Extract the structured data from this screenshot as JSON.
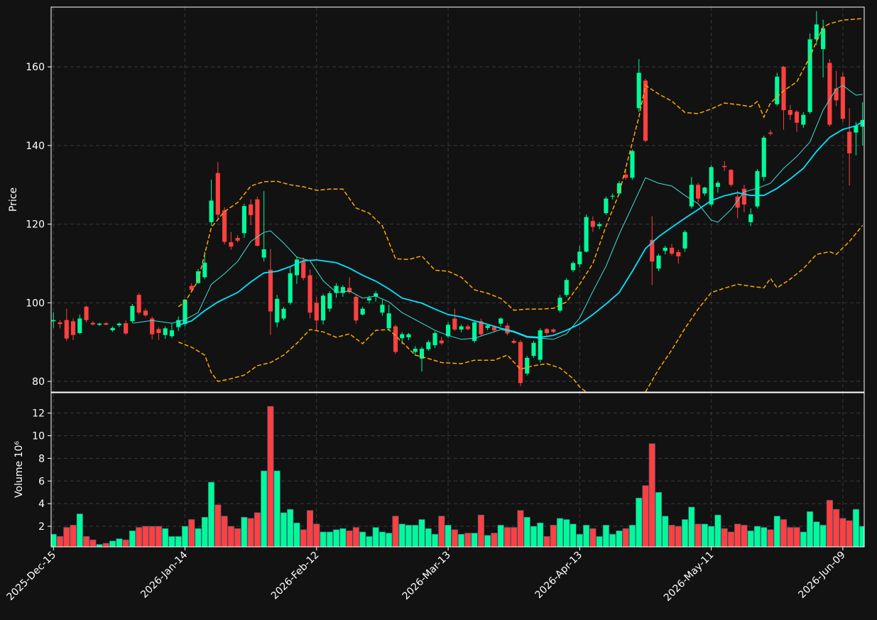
{
  "chart_data": {
    "type": "candlestick",
    "ylabel": "Price",
    "ylim": [
      77.3,
      175.2
    ],
    "yticks": [
      80,
      100,
      120,
      140,
      160
    ],
    "xlim": [
      -0.35,
      123.25
    ],
    "xticks": [
      {
        "value": 0,
        "label": "2025-Dec-15"
      },
      {
        "value": 20,
        "label": "2026-Jan-14"
      },
      {
        "value": 40,
        "label": "2026-Feb-12"
      },
      {
        "value": 60,
        "label": "2026-Mar-13"
      },
      {
        "value": 80,
        "label": "2026-Apr-13"
      },
      {
        "value": 100,
        "label": "2026-May-11"
      },
      {
        "value": 120,
        "label": "2026-Jun-09"
      }
    ],
    "grid": true,
    "up_color": "#00fa9a",
    "down_color": "#ff4040",
    "open": [
      95.3,
      95,
      95.6,
      95.3,
      92.3,
      99,
      94.9,
      94.4,
      94.8,
      93,
      94.3,
      94.8,
      95.3,
      102,
      98,
      96,
      93.3,
      91.8,
      91.5,
      93.8,
      94.6,
      104.3,
      105,
      106.5,
      120.5,
      133,
      123.5,
      115.4,
      116.5,
      117.7,
      125,
      126.3,
      111.5,
      108.4,
      95,
      96,
      100,
      107,
      110.5,
      107,
      100,
      95.5,
      98.5,
      102.5,
      102.5,
      103.8,
      101.5,
      97,
      100.6,
      101.6,
      97.5,
      93.5,
      94,
      91,
      91.2,
      87.5,
      85.8,
      88.2,
      89.2,
      90.4,
      91.5,
      96,
      93.2,
      94,
      90.3,
      95.3,
      93.6,
      93.8,
      94.7,
      94.2,
      90.3,
      90,
      82,
      86.5,
      85.5,
      93.3,
      93.2,
      98,
      102,
      108.3,
      109.8,
      113,
      120.8,
      119.5,
      122.8,
      127,
      127.8,
      132.6,
      131.8,
      149.5,
      156.5,
      116,
      108.7,
      113.2,
      114,
      112.9,
      113.8,
      124.5,
      130,
      127.8,
      125,
      129.5,
      134.8,
      133.8,
      127,
      129,
      120.5,
      124.5,
      132,
      143.3,
      150.5,
      160,
      149,
      148.6,
      145.3,
      148.5,
      167,
      164.5,
      161,
      154.5,
      157.5,
      143.5,
      143.3,
      144.8
    ],
    "high": [
      97.6,
      95.6,
      98.5,
      96,
      97,
      99.3,
      95.3,
      94.9,
      95.1,
      94,
      95,
      95.5,
      99.7,
      102.5,
      98.5,
      96.5,
      93.8,
      94,
      94.8,
      96.5,
      101,
      105,
      108.6,
      113,
      131.3,
      135.8,
      124.3,
      118,
      117.2,
      125.2,
      126.3,
      127,
      128.4,
      113.7,
      102,
      99,
      109,
      111.8,
      111.5,
      108.5,
      101.5,
      102.3,
      103,
      105,
      104.5,
      106.5,
      102,
      99,
      101.8,
      103,
      101,
      99.5,
      94.4,
      92.5,
      92.3,
      89,
      88.8,
      90.5,
      92.8,
      91.3,
      95,
      98.5,
      94.5,
      94.4,
      95.5,
      96,
      94.5,
      94.3,
      96.3,
      94.8,
      90.8,
      90.5,
      86.5,
      90.3,
      93.5,
      93.6,
      93.5,
      102,
      106.3,
      110.5,
      114.5,
      122.5,
      122,
      120.5,
      127,
      127.8,
      131,
      134,
      139,
      162,
      157,
      122,
      112.5,
      114.5,
      115,
      113.5,
      118.5,
      132,
      130.5,
      129.5,
      135,
      131,
      136,
      134,
      128.5,
      130,
      124,
      134,
      142.5,
      144,
      158.5,
      160.3,
      150.3,
      149,
      148.5,
      168.5,
      174.2,
      172,
      162,
      159,
      158.5,
      149.5,
      146,
      151
    ],
    "low": [
      93.6,
      93.5,
      90.3,
      90.5,
      92,
      95,
      94.2,
      94.1,
      94.3,
      92.6,
      93.8,
      91.8,
      95,
      97,
      96.4,
      90.7,
      90.5,
      90.8,
      91,
      92.8,
      94,
      102.9,
      104.9,
      106,
      119.6,
      121.5,
      114.8,
      113.5,
      115.3,
      116.5,
      119.8,
      114.3,
      110.5,
      91.8,
      93.8,
      95.5,
      99.5,
      104.8,
      105.7,
      96,
      92.8,
      94.5,
      97.7,
      101.3,
      101.5,
      102.3,
      94.7,
      96.8,
      99.8,
      100.3,
      96.7,
      92.8,
      87,
      89.5,
      90.5,
      86.5,
      82.5,
      87.8,
      88.5,
      89.3,
      91,
      92.8,
      92.5,
      93,
      89.8,
      91.5,
      93,
      92.5,
      94,
      91.7,
      89.5,
      78.8,
      81.5,
      86,
      84.8,
      91.8,
      92.3,
      97.5,
      101.5,
      107.8,
      109,
      112.8,
      118,
      118.7,
      122.3,
      126.3,
      127.3,
      131.3,
      131.3,
      148.5,
      140.8,
      104.5,
      108,
      112.3,
      112,
      110,
      113,
      124,
      125.5,
      127.2,
      124.5,
      128,
      133.5,
      129.5,
      121.5,
      123,
      119.5,
      124,
      131,
      142.5,
      150,
      144,
      146.5,
      143.5,
      144.5,
      148,
      165.5,
      157.3,
      144.8,
      150,
      146,
      129.8,
      137.5,
      140
    ],
    "close": [
      95.6,
      94.6,
      90.9,
      91.8,
      96,
      95.6,
      94.5,
      94.7,
      94.4,
      93.6,
      94.7,
      92.2,
      99.2,
      97.5,
      96.8,
      92,
      92.3,
      93.5,
      93,
      95.6,
      100.8,
      103.3,
      108,
      110.2,
      126,
      122.4,
      115.5,
      114.3,
      115.8,
      124.6,
      122.3,
      114.5,
      113.6,
      97.8,
      101,
      98.5,
      107.5,
      111,
      106.3,
      97.5,
      95.5,
      101.8,
      102.4,
      104.3,
      104,
      102.7,
      95.5,
      98.5,
      101.2,
      102.4,
      99.5,
      97.3,
      87.5,
      92,
      92,
      88.3,
      88.3,
      90,
      92.3,
      89.7,
      94.4,
      93.2,
      94,
      93.3,
      95,
      92,
      94.2,
      93,
      96,
      92.2,
      89.8,
      79.6,
      86,
      89.8,
      93,
      92.3,
      92.6,
      101.3,
      105.8,
      110.1,
      113,
      121.8,
      119.3,
      120,
      126.5,
      127.2,
      130.4,
      131.8,
      138.6,
      158.5,
      141.2,
      110.5,
      112,
      114,
      112.5,
      111.8,
      118,
      130,
      126.5,
      129.3,
      134.5,
      130.5,
      134.5,
      130,
      124.2,
      125,
      122.5,
      133.5,
      142,
      143,
      157.5,
      149,
      147.8,
      145.8,
      147.8,
      167,
      170.8,
      169.8,
      145.3,
      151.5,
      146.8,
      138,
      145,
      146.5
    ],
    "overlays": [
      {
        "color": "#40e0d0",
        "width": 1,
        "dashed": false,
        "x": [
          12,
          15,
          18,
          20,
          22,
          24,
          26,
          28,
          30,
          32,
          33,
          35,
          37,
          39,
          41,
          43,
          45,
          47,
          49,
          51,
          53,
          56,
          58,
          60,
          62,
          64,
          66,
          68,
          70,
          72,
          74,
          76,
          78,
          80,
          82,
          84,
          86,
          88,
          90,
          92,
          94,
          96,
          98,
          100,
          101,
          103,
          105,
          107,
          109,
          111,
          113,
          115,
          117,
          119,
          120,
          121,
          122,
          123
        ],
        "values": [
          94.8,
          95.5,
          94.8,
          95.7,
          97.5,
          104.7,
          107.4,
          110.5,
          115.6,
          117.9,
          118.3,
          115.2,
          111.6,
          110.7,
          105.6,
          102.6,
          103,
          101.2,
          101.7,
          100.2,
          97.5,
          94.8,
          93,
          91.7,
          90.7,
          91,
          92.1,
          93.2,
          92.5,
          91.2,
          91,
          90.7,
          92.1,
          96.1,
          102.9,
          109.3,
          117.4,
          124.6,
          131.8,
          130.4,
          129.7,
          127.3,
          125.2,
          121,
          120.5,
          123.7,
          128.2,
          129.1,
          130.4,
          134.2,
          137.2,
          140.9,
          149,
          154.4,
          155.3,
          154,
          152.8,
          153
        ]
      },
      {
        "color": "#00e5ff",
        "width": 1.8,
        "dashed": false,
        "x": [
          19,
          21,
          23,
          25,
          28,
          30,
          32,
          34,
          36,
          38,
          40,
          43,
          45,
          47,
          49,
          51,
          53,
          56,
          58,
          60,
          62,
          64,
          66,
          68,
          70,
          72,
          74,
          76,
          78,
          80,
          82,
          84,
          86,
          88,
          90,
          92,
          94,
          96,
          98,
          100,
          102,
          104,
          106,
          108,
          110,
          112,
          114,
          116,
          118,
          120,
          122,
          123
        ],
        "values": [
          94.3,
          95.4,
          98,
          100.2,
          102.6,
          105.3,
          107.6,
          108,
          109.2,
          110.7,
          110.9,
          110.2,
          108.8,
          107,
          105.5,
          103.5,
          101.2,
          99.9,
          98.4,
          97,
          96.4,
          95.4,
          94.5,
          93.5,
          92.7,
          91.4,
          91.2,
          91.7,
          93,
          94.6,
          97,
          99.7,
          102.6,
          108,
          113.8,
          116.8,
          119.2,
          121.5,
          123.7,
          126,
          127.2,
          128,
          127.3,
          127.3,
          129.1,
          131.5,
          134.2,
          138.5,
          142.1,
          144.1,
          145,
          146.1
        ]
      },
      {
        "color": "#ffa500",
        "width": 1.5,
        "dashed": true,
        "x": [
          19,
          20,
          22,
          24,
          26,
          28,
          30,
          32,
          34,
          36,
          38,
          40,
          42,
          44,
          46,
          48,
          50,
          52,
          54,
          56,
          58,
          60,
          62,
          64,
          66,
          68,
          70,
          72,
          74,
          76,
          78,
          80,
          82,
          84,
          86,
          88,
          89,
          90,
          92,
          94,
          96,
          98,
          100,
          102,
          104,
          106,
          107,
          108,
          109,
          111,
          113,
          115,
          116,
          117,
          118,
          120,
          123
        ],
        "values": [
          99,
          100.2,
          105.6,
          119.2,
          123.2,
          125.5,
          129.7,
          130.8,
          130.9,
          130,
          129.5,
          128.6,
          128.9,
          128.9,
          124.1,
          122.8,
          119.6,
          111.2,
          111,
          111.9,
          108.3,
          108,
          106.5,
          103.3,
          102.4,
          101.1,
          98.1,
          98.4,
          98.4,
          98.6,
          100.2,
          104.7,
          110,
          119.5,
          127.8,
          140.8,
          147.2,
          155.3,
          153.1,
          151.3,
          148.4,
          148.1,
          149.3,
          150.8,
          150.4,
          149.9,
          151.2,
          147.2,
          150.8,
          153.9,
          156.2,
          162.5,
          166.5,
          170.1,
          171,
          171.9,
          172.3
        ]
      },
      {
        "color": "#ffa500",
        "width": 1.5,
        "dashed": true,
        "x": [
          19,
          21,
          23,
          24,
          25,
          27,
          29,
          31,
          33,
          35,
          37,
          39,
          41,
          43,
          45,
          47,
          49,
          51,
          53,
          55,
          57,
          59,
          62,
          64,
          67,
          69,
          71,
          73,
          75,
          77,
          79,
          80,
          81,
          85,
          90,
          92,
          94,
          96,
          98,
          100,
          102,
          104,
          106,
          108,
          109,
          110,
          112,
          114,
          116,
          118,
          119,
          121,
          123
        ],
        "values": [
          90,
          88.7,
          86.7,
          82.2,
          80,
          80.7,
          81.6,
          84,
          84.8,
          86.7,
          89.7,
          93.2,
          92.6,
          91.2,
          92.1,
          89.6,
          93,
          93.2,
          90,
          86.7,
          85.8,
          84.8,
          84.5,
          85.4,
          85.4,
          86.7,
          83.1,
          84,
          84.5,
          83.4,
          80.7,
          78.6,
          77.3,
          null,
          77.3,
          83.1,
          88,
          93.5,
          98.4,
          102.6,
          103.7,
          104.7,
          104.2,
          103.8,
          106.2,
          103.8,
          106,
          108.7,
          112.3,
          113,
          112.3,
          115.6,
          119.7
        ]
      }
    ],
    "volume": {
      "ylabel": "Volume  10⁶",
      "ylim": [
        0.18,
        13.8
      ],
      "yticks": [
        2,
        4,
        6,
        8,
        10,
        12
      ],
      "values": [
        1.3,
        1.1,
        1.9,
        2.1,
        3.1,
        1.1,
        0.8,
        0.4,
        0.5,
        0.7,
        0.9,
        0.8,
        1.6,
        1.9,
        2.0,
        2.0,
        2.0,
        1.8,
        1.1,
        1.1,
        2.0,
        2.6,
        1.8,
        2.8,
        5.9,
        3.9,
        2.9,
        2.0,
        1.8,
        2.8,
        2.7,
        3.2,
        6.9,
        12.6,
        6.9,
        3.2,
        3.5,
        2.3,
        1.7,
        3.4,
        2.2,
        1.5,
        1.5,
        1.7,
        1.8,
        1.6,
        1.9,
        1.5,
        1.1,
        1.9,
        1.5,
        1.4,
        2.9,
        2.2,
        2.1,
        2.1,
        2.6,
        1.8,
        1.3,
        2.9,
        2.1,
        1.7,
        1.3,
        1.4,
        1.4,
        3.0,
        1.2,
        1.4,
        2.1,
        1.9,
        1.9,
        3.4,
        2.8,
        2.0,
        2.3,
        1.1,
        2.1,
        2.7,
        2.6,
        2.2,
        1.3,
        2.1,
        1.8,
        1.1,
        2.1,
        1.3,
        1.6,
        1.8,
        2.1,
        4.5,
        5.6,
        9.3,
        5.0,
        2.9,
        2.1,
        2.0,
        2.6,
        3.7,
        2.2,
        2.2,
        2.0,
        3.0,
        1.8,
        1.5,
        2.2,
        2.1,
        1.6,
        2.0,
        1.9,
        1.7,
        2.9,
        2.6,
        1.9,
        1.9,
        1.5,
        3.3,
        2.4,
        2.1,
        4.3,
        3.5,
        2.7,
        2.5,
        3.5,
        2.0
      ]
    }
  }
}
